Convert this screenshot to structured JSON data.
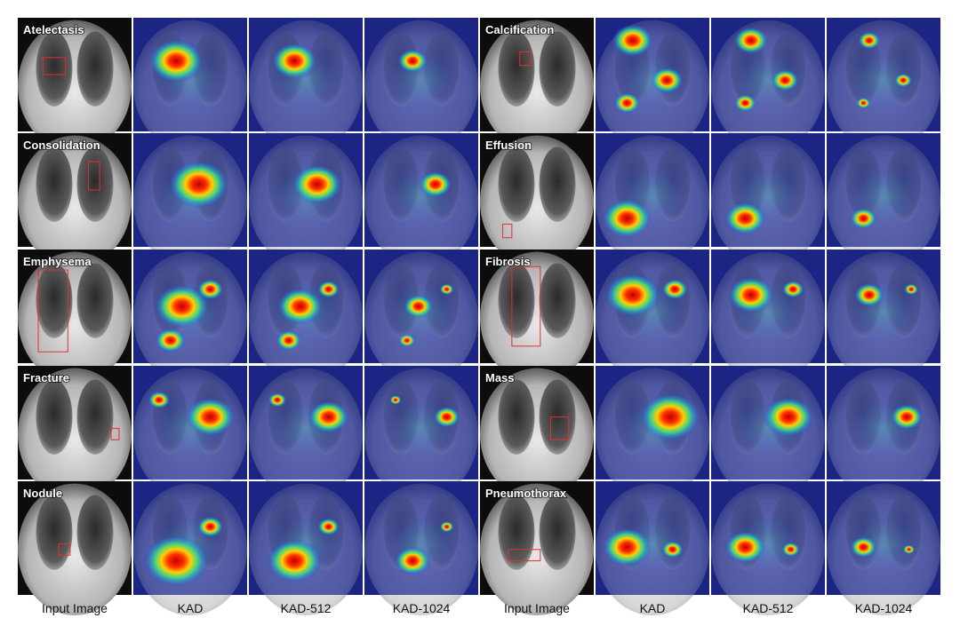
{
  "rows": [
    {
      "left": "Atelectasis",
      "right": "Calcification"
    },
    {
      "left": "Consolidation",
      "right": "Effusion"
    },
    {
      "left": "Emphysema",
      "right": "Fibrosis"
    },
    {
      "left": "Fracture",
      "right": "Mass"
    },
    {
      "left": "Nodule",
      "right": "Pneumothorax"
    }
  ],
  "columns": [
    "Input Image",
    "KAD",
    "KAD-512",
    "KAD-1024",
    "Input Image",
    "KAD",
    "KAD-512",
    "KAD-1024"
  ]
}
